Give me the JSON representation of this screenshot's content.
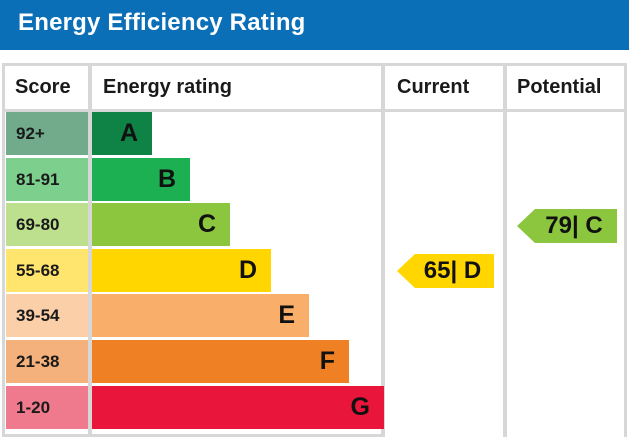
{
  "chart_data": {
    "type": "table",
    "title": "Energy Efficiency Rating",
    "columns": [
      "Score",
      "Energy rating",
      "Current",
      "Potential"
    ],
    "bands": [
      {
        "score": "92+",
        "letter": "A",
        "band_color": "#0f8246",
        "score_color": "#71ab8b",
        "fraction": 0.2
      },
      {
        "score": "81-91",
        "letter": "B",
        "band_color": "#1db052",
        "score_color": "#7ccf8d",
        "fraction": 0.33
      },
      {
        "score": "69-80",
        "letter": "C",
        "band_color": "#8cc63f",
        "score_color": "#bde08e",
        "fraction": 0.47
      },
      {
        "score": "55-68",
        "letter": "D",
        "band_color": "#ffd600",
        "score_color": "#ffe56d",
        "fraction": 0.61
      },
      {
        "score": "39-54",
        "letter": "E",
        "band_color": "#f9ae6a",
        "score_color": "#fbcfa8",
        "fraction": 0.74
      },
      {
        "score": "21-38",
        "letter": "F",
        "band_color": "#ef8023",
        "score_color": "#f4b17c",
        "fraction": 0.88
      },
      {
        "score": "1-20",
        "letter": "G",
        "band_color": "#e9153b",
        "score_color": "#ef7a8d",
        "fraction": 1.0
      }
    ],
    "current": {
      "value": 65,
      "letter": "D",
      "label": "65| D",
      "color": "#ffd600"
    },
    "potential": {
      "value": 79,
      "letter": "C",
      "label": "79| C",
      "color": "#8cc63f"
    }
  },
  "colors": {
    "header": "#0b6fb8",
    "grid": "#d7d7d7"
  }
}
